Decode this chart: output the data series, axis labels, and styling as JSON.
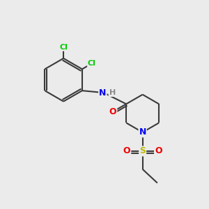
{
  "bg_color": "#ebebeb",
  "atom_colors": {
    "C": "#3a3a3a",
    "N": "#0000ee",
    "O": "#ee0000",
    "S": "#bbbb00",
    "Cl": "#00cc00",
    "H": "#888888"
  },
  "bond_color": "#3a3a3a",
  "bond_width": 1.5,
  "figsize": [
    3.0,
    3.0
  ],
  "dpi": 100,
  "xlim": [
    0,
    10
  ],
  "ylim": [
    0,
    10
  ]
}
